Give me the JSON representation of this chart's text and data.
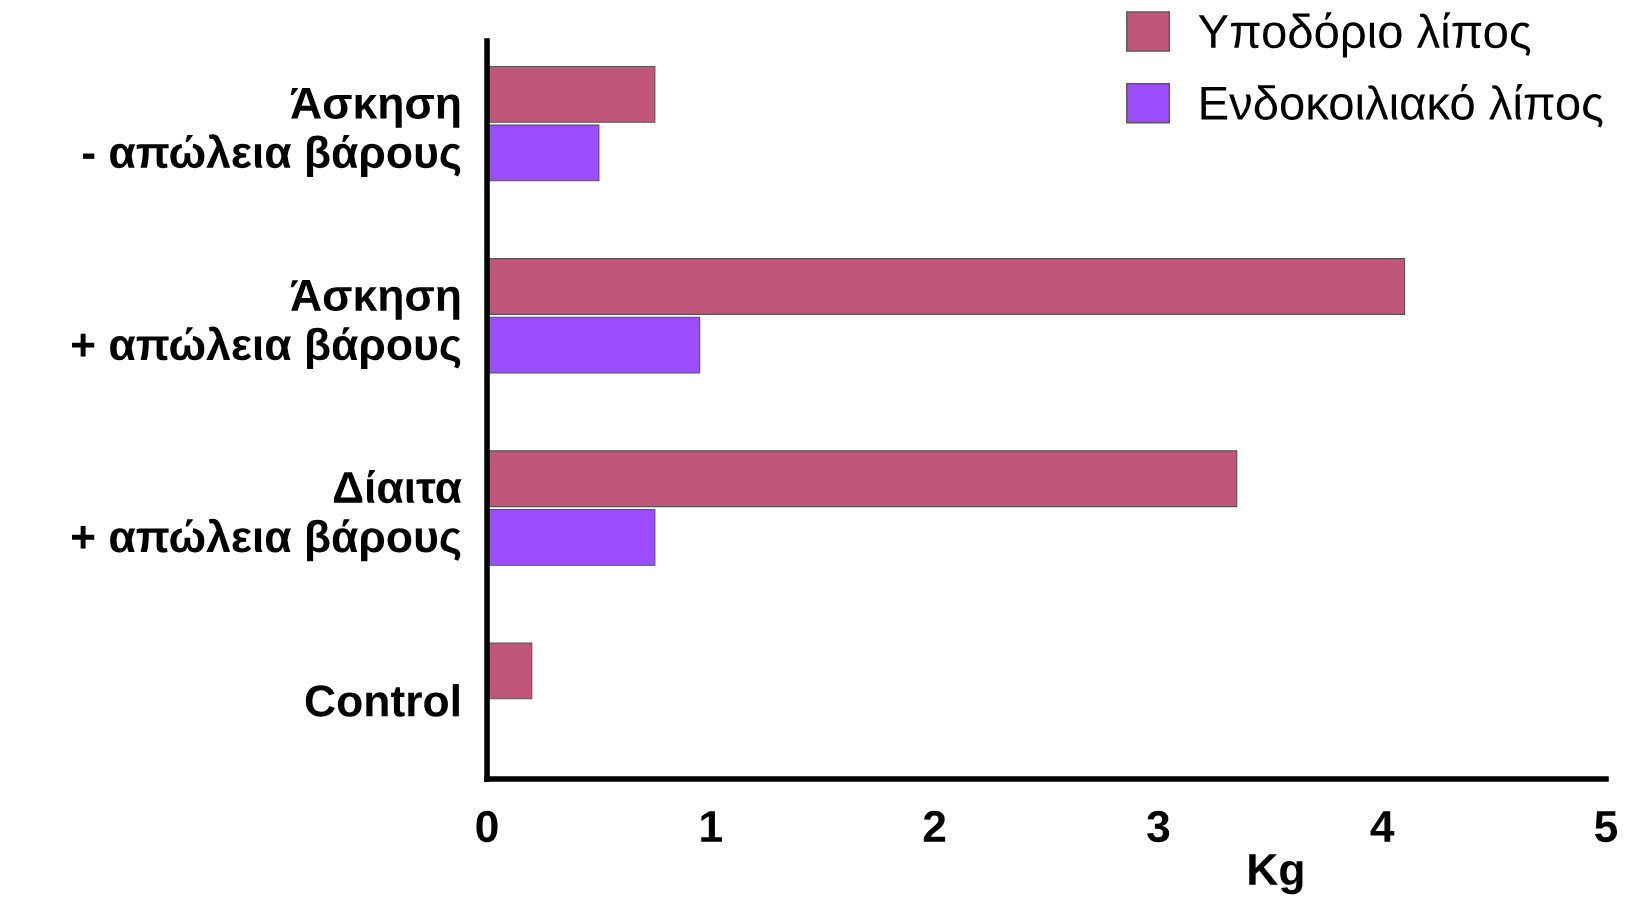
{
  "chart_data": {
    "type": "bar",
    "orientation": "horizontal",
    "categories": [
      "Άσκηση\n- απώλεια βάρους",
      "Άσκηση\n+ απώλεια βάρους",
      "Δίαιτα\n+ απώλεια βάρους",
      "Control"
    ],
    "series": [
      {
        "name": "Υποδόριο λίπος",
        "color": "#c0577a",
        "values": [
          0.75,
          4.1,
          3.35,
          0.2
        ]
      },
      {
        "name": "Ενδοκοιλιακό λίπος",
        "color": "#9b4dff",
        "values": [
          0.5,
          0.95,
          0.75,
          null
        ]
      }
    ],
    "xlabel": "Kg",
    "xlim": [
      0,
      5
    ],
    "xticks": [
      0,
      1,
      2,
      3,
      4,
      5
    ],
    "legend": "top right"
  }
}
